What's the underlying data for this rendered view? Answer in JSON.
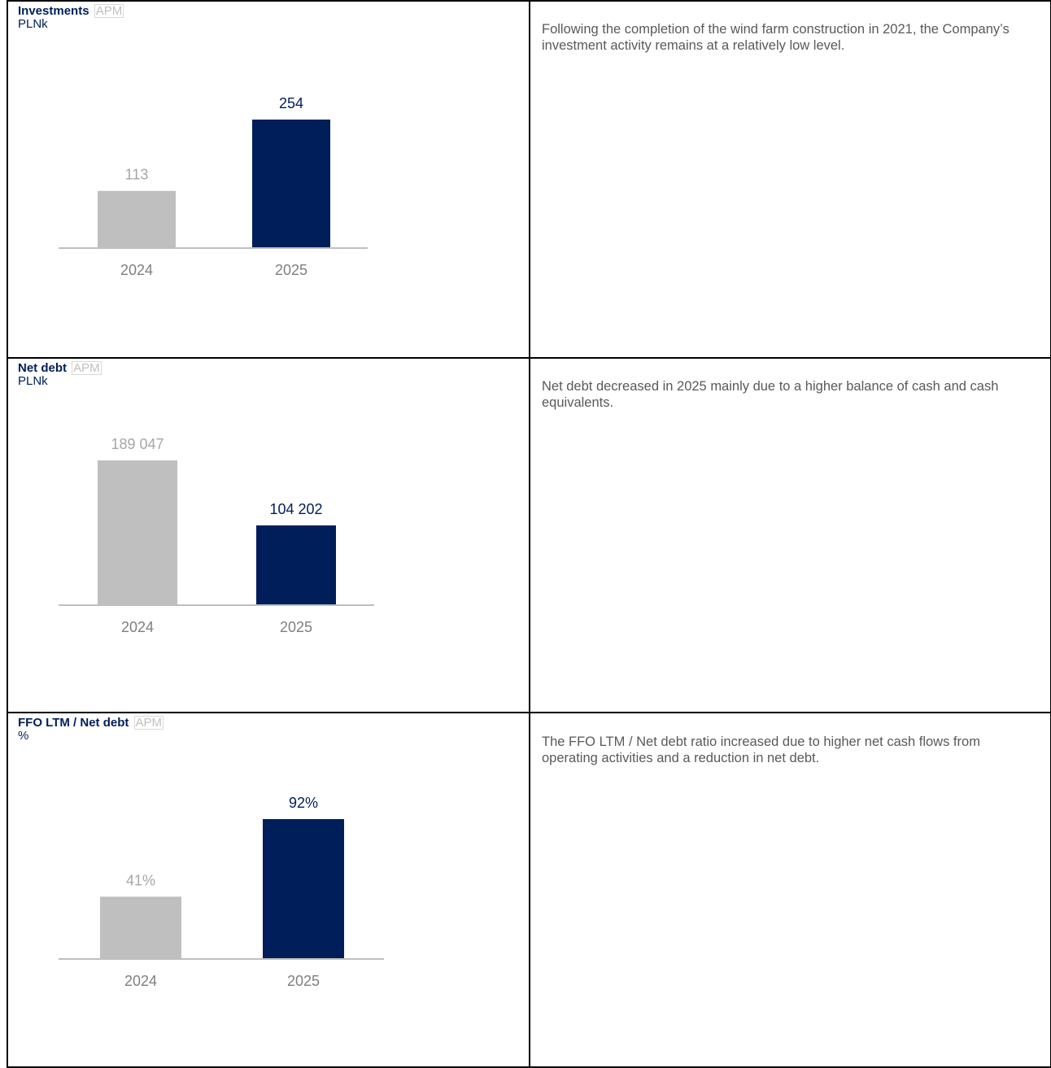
{
  "colors": {
    "prev_bar": "#BFBFBF",
    "curr_bar": "#001E5A",
    "prev_label": "#A6A6A6",
    "curr_label": "#001E5A",
    "axis": "#BFBFBF",
    "tick_label": "#7F7F7F"
  },
  "panels": [
    {
      "title": "Investments",
      "badge": "APM",
      "unit": "PLNk",
      "description": "Following the completion of the wind farm construction in 2021, the Company’s investment activity remains at a relatively low level.",
      "chart_data": {
        "type": "bar",
        "categories": [
          "2024",
          "2025"
        ],
        "values": [
          113,
          254
        ],
        "value_labels": [
          "113",
          "254"
        ],
        "ylim": [
          0,
          254
        ]
      }
    },
    {
      "title": "Net debt",
      "badge": "APM",
      "unit": "PLNk",
      "description": "Net debt decreased in 2025 mainly due to a higher balance of cash and cash equivalents.",
      "chart_data": {
        "type": "bar",
        "categories": [
          "2024",
          "2025"
        ],
        "values": [
          189047,
          104202
        ],
        "value_labels": [
          "189 047",
          "104 202"
        ],
        "ylim": [
          0,
          189047
        ]
      }
    },
    {
      "title": "FFO LTM / Net debt",
      "badge": "APM",
      "unit": "%",
      "description": "The FFO LTM / Net debt ratio increased due to higher net cash flows from operating activities and a reduction in net debt.",
      "chart_data": {
        "type": "bar",
        "categories": [
          "2024",
          "2025"
        ],
        "values": [
          41,
          92
        ],
        "value_labels": [
          "41%",
          "92%"
        ],
        "ylim": [
          0,
          92
        ]
      }
    }
  ]
}
